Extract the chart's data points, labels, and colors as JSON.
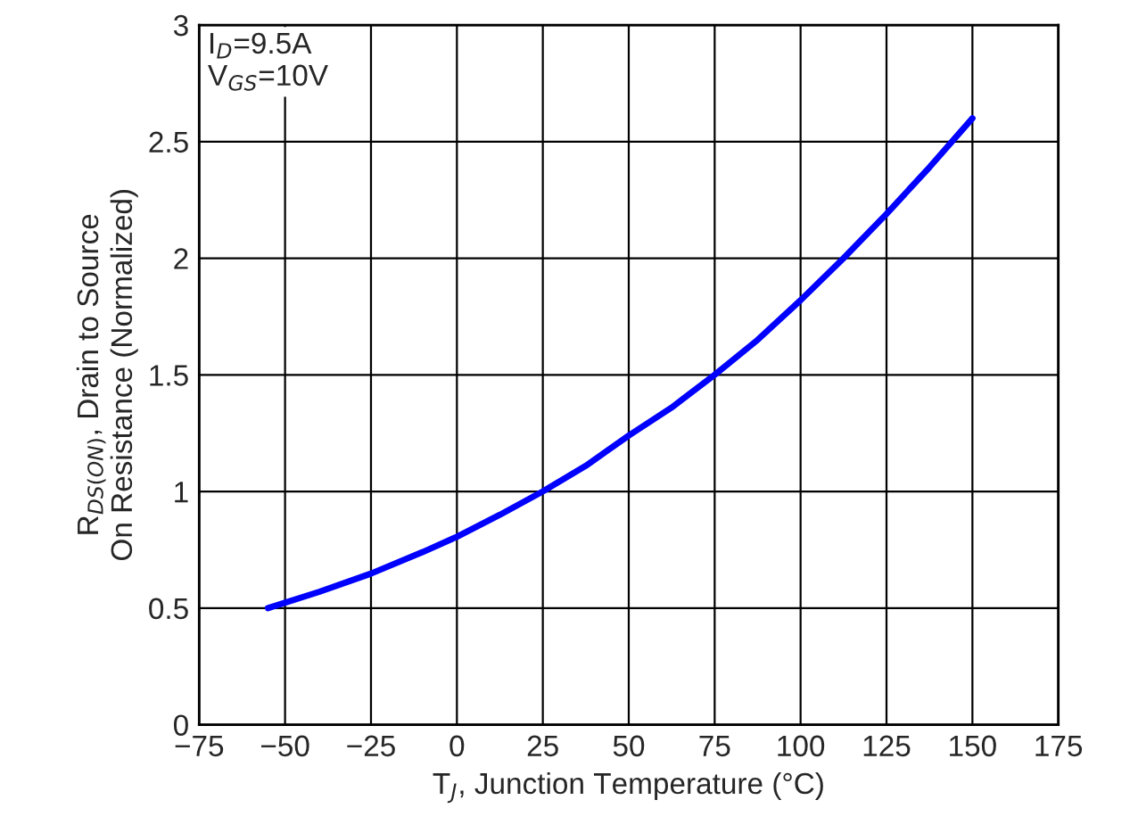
{
  "chart_data": {
    "type": "line",
    "xlabel": "T$_{J}$, Junction Temperature (°C)",
    "ylabel": "R$_{DS(ON)}$, Drain to Source\nOn Resistance (Normalized)",
    "annotations": [
      "I$_{D}$=9.5A\nV$_{GS}$=10V"
    ],
    "x": [
      -55,
      -40,
      -25,
      -10,
      0,
      12.5,
      25,
      37.5,
      50,
      62.5,
      75,
      87.5,
      100,
      112.5,
      125,
      137.5,
      150
    ],
    "series": [
      {
        "color": "#0000ff",
        "values": [
          0.5,
          0.57,
          0.648,
          0.74,
          0.806,
          0.9,
          1.0,
          1.11,
          1.24,
          1.36,
          1.5,
          1.65,
          1.82,
          2.0,
          2.19,
          2.39,
          2.6
        ]
      }
    ],
    "xlim": [
      -75,
      175
    ],
    "ylim": [
      0,
      3
    ],
    "xticks": [
      {
        "value": -75,
        "label": "−75"
      },
      {
        "value": -50,
        "label": "−50"
      },
      {
        "value": -25,
        "label": "−25"
      },
      0,
      25,
      50,
      75,
      100,
      125,
      150,
      175
    ],
    "yticks": [
      0,
      0.5,
      1,
      1.5,
      2,
      2.5,
      3
    ],
    "grid": true,
    "legend": false,
    "marker": "none",
    "line_style": "solid"
  }
}
